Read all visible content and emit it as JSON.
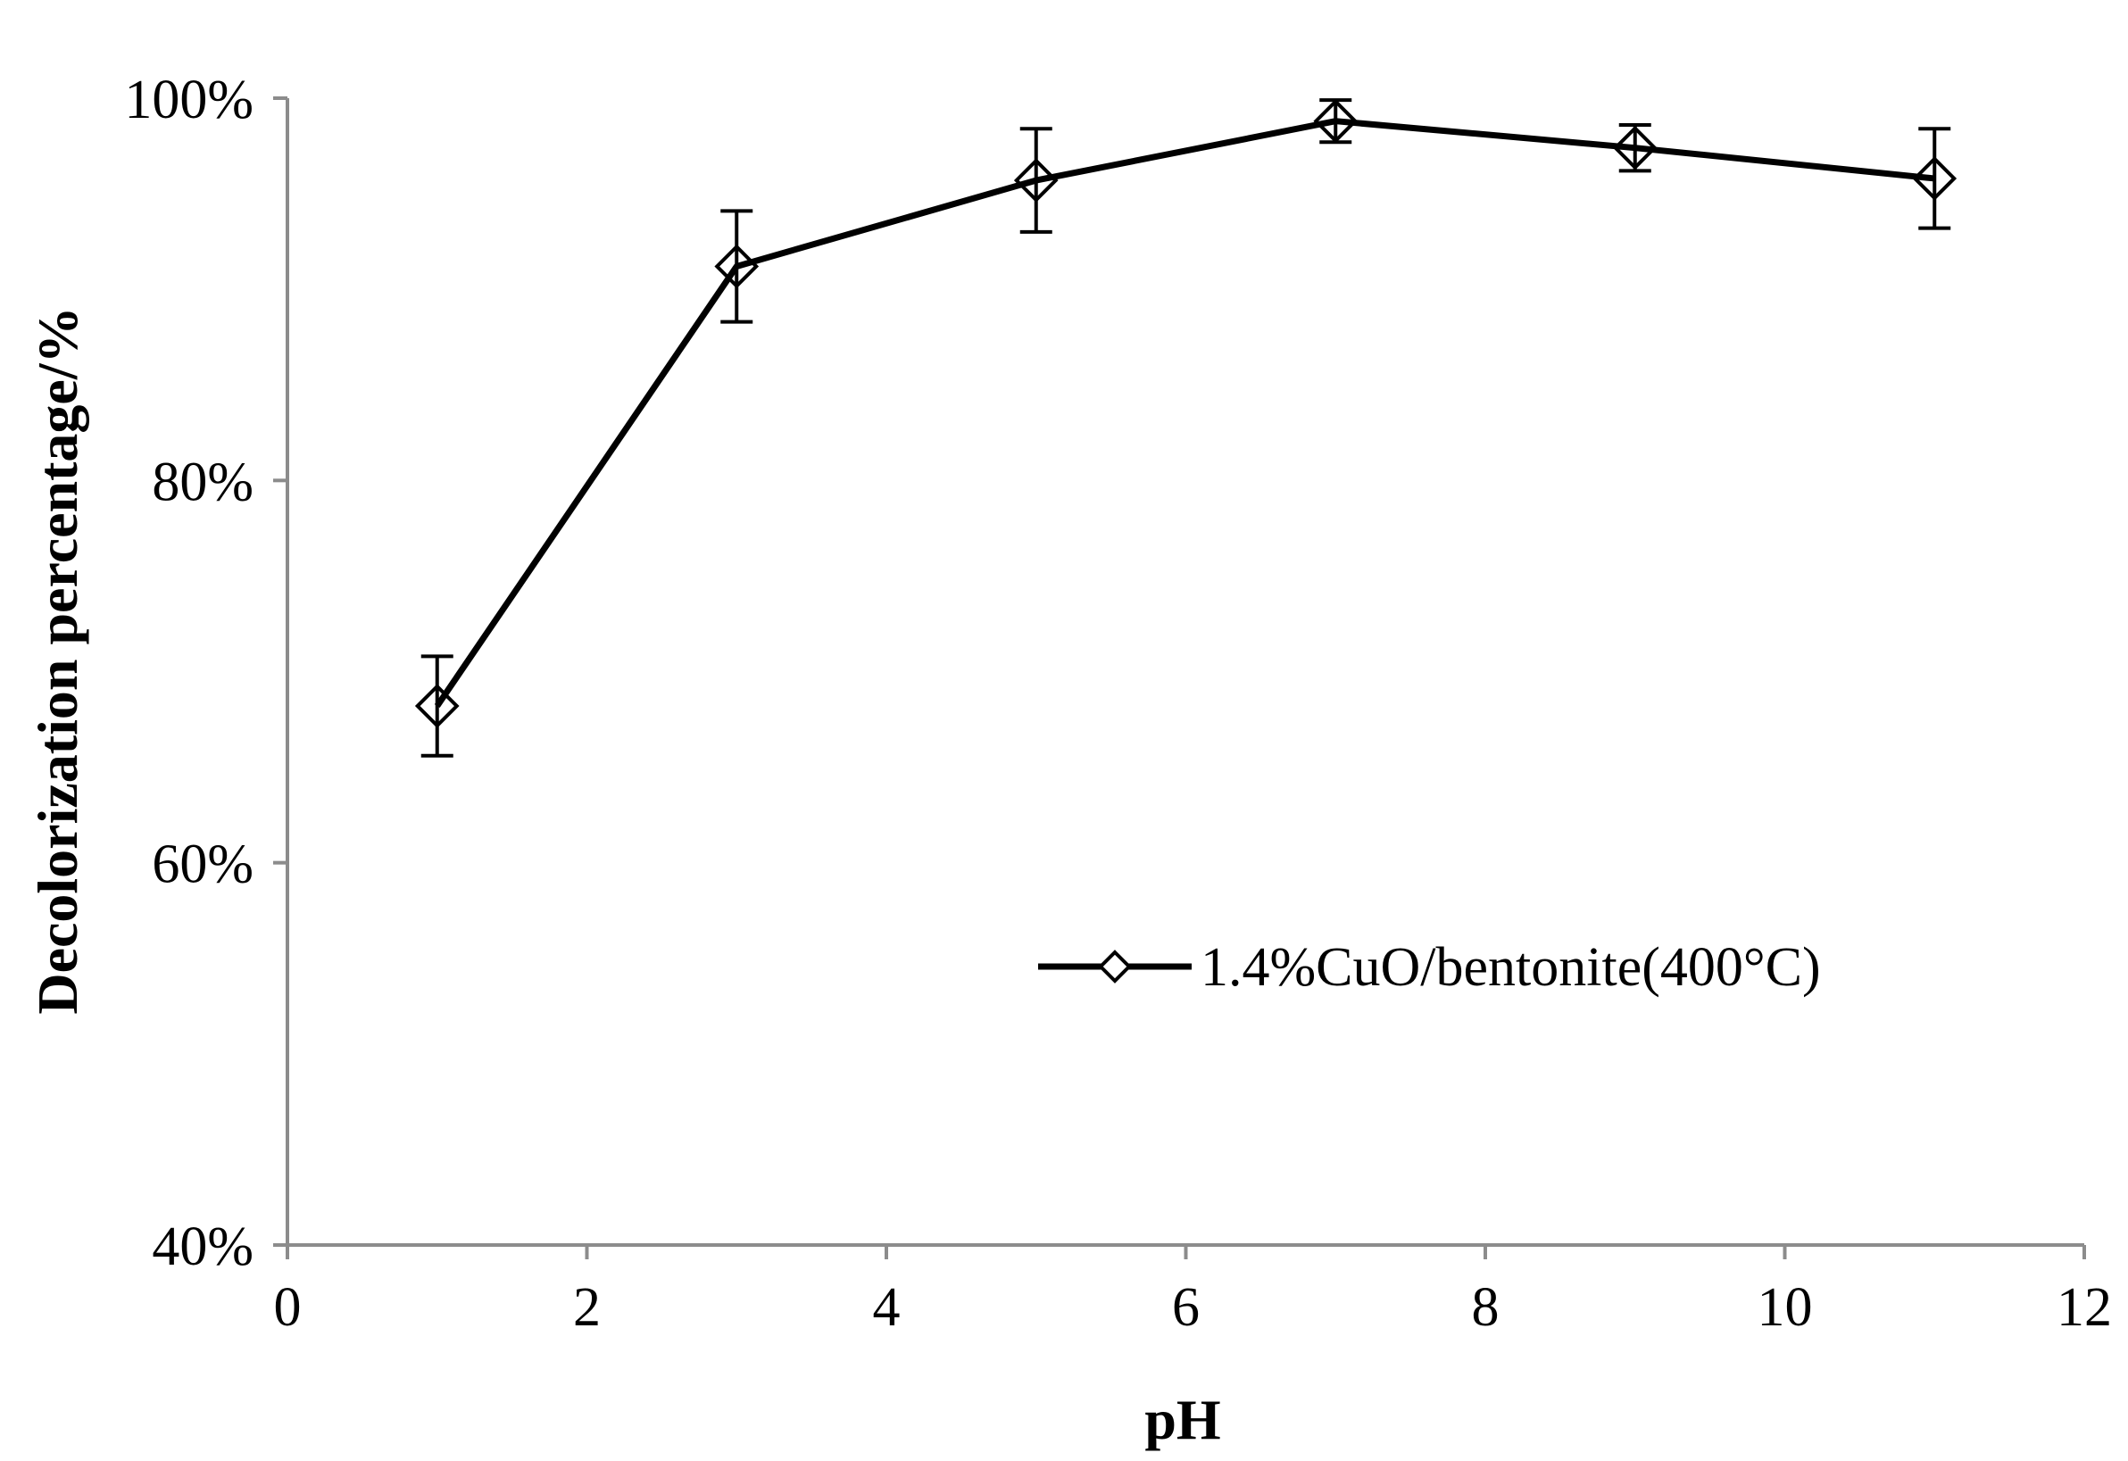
{
  "chart_data": {
    "type": "line",
    "title": "",
    "xlabel": "pH",
    "ylabel": "Decolorization percentage/%",
    "xlim": [
      0,
      12
    ],
    "ylim": [
      40,
      100
    ],
    "x_ticks": [
      0,
      2,
      4,
      6,
      8,
      10,
      12
    ],
    "y_ticks": [
      40,
      60,
      80,
      100
    ],
    "x_tick_labels": [
      "0",
      "2",
      "4",
      "6",
      "8",
      "10",
      "12"
    ],
    "y_tick_labels": [
      "40%",
      "60%",
      "80%",
      "100%"
    ],
    "grid": false,
    "legend_position": "center-right",
    "series": [
      {
        "name": "1.4%CuO/bentonite(400°C)",
        "marker": "diamond-open",
        "color": "#000000",
        "x": [
          1,
          3,
          5,
          7,
          9,
          11
        ],
        "y": [
          68.2,
          91.2,
          95.7,
          98.8,
          97.4,
          95.8
        ],
        "error": [
          2.6,
          2.9,
          2.7,
          1.1,
          1.2,
          2.6
        ]
      }
    ]
  }
}
